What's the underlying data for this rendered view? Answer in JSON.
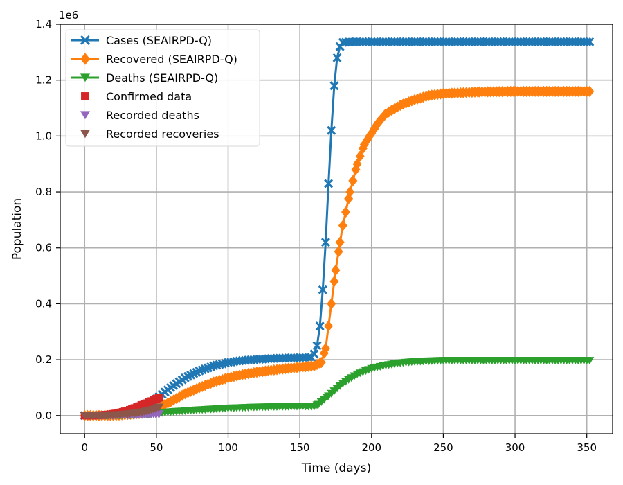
{
  "chart_data": {
    "type": "line",
    "xlabel": "Time (days)",
    "ylabel": "Population",
    "y_scale_label": "1e6",
    "xlim": [
      -17,
      368
    ],
    "ylim": [
      -0.065,
      1.4
    ],
    "x_ticks": [
      0,
      50,
      100,
      150,
      200,
      250,
      300,
      350
    ],
    "x_tick_labels": [
      "0",
      "50",
      "100",
      "150",
      "200",
      "250",
      "300",
      "350"
    ],
    "y_ticks": [
      0.0,
      0.2,
      0.4,
      0.6,
      0.8,
      1.0,
      1.2,
      1.4
    ],
    "y_tick_labels": [
      "0.0",
      "0.2",
      "0.4",
      "0.6",
      "0.8",
      "1.0",
      "1.2",
      "1.4"
    ],
    "grid": true,
    "legend_position": "top-left",
    "series": [
      {
        "name": "Cases (SEAIRPD-Q)",
        "kind": "line",
        "marker": "x",
        "color": "#1f77b4",
        "x": [
          0,
          10,
          20,
          30,
          40,
          50,
          60,
          70,
          80,
          90,
          100,
          110,
          120,
          130,
          140,
          150,
          158,
          160,
          162,
          164,
          166,
          168,
          170,
          172,
          174,
          176,
          178,
          180,
          185,
          190,
          200,
          250,
          300,
          352
        ],
        "y": [
          0.0,
          0.0,
          0.002,
          0.008,
          0.025,
          0.06,
          0.1,
          0.135,
          0.16,
          0.178,
          0.19,
          0.197,
          0.201,
          0.204,
          0.206,
          0.207,
          0.208,
          0.22,
          0.25,
          0.32,
          0.45,
          0.62,
          0.83,
          1.02,
          1.18,
          1.28,
          1.32,
          1.335,
          1.337,
          1.337,
          1.337,
          1.337,
          1.337,
          1.337
        ]
      },
      {
        "name": "Recovered (SEAIRPD-Q)",
        "kind": "line",
        "marker": "D",
        "color": "#ff7f0e",
        "x": [
          0,
          20,
          40,
          50,
          60,
          70,
          80,
          90,
          100,
          110,
          120,
          130,
          140,
          150,
          160,
          165,
          168,
          170,
          172,
          175,
          178,
          180,
          185,
          190,
          195,
          200,
          205,
          210,
          220,
          230,
          240,
          250,
          275,
          300,
          352
        ],
        "y": [
          0.0,
          0.0,
          0.008,
          0.025,
          0.05,
          0.078,
          0.1,
          0.12,
          0.135,
          0.147,
          0.155,
          0.162,
          0.168,
          0.173,
          0.178,
          0.19,
          0.24,
          0.32,
          0.4,
          0.52,
          0.62,
          0.68,
          0.8,
          0.9,
          0.97,
          1.01,
          1.05,
          1.08,
          1.11,
          1.13,
          1.145,
          1.152,
          1.158,
          1.16,
          1.16
        ]
      },
      {
        "name": "Deaths (SEAIRPD-Q)",
        "kind": "line",
        "marker": "v",
        "color": "#2ca02c",
        "x": [
          0,
          20,
          40,
          50,
          60,
          80,
          100,
          120,
          140,
          160,
          163,
          170,
          180,
          190,
          200,
          210,
          220,
          230,
          250,
          300,
          352
        ],
        "y": [
          0.0,
          0.0,
          0.003,
          0.008,
          0.013,
          0.02,
          0.026,
          0.03,
          0.032,
          0.033,
          0.04,
          0.07,
          0.115,
          0.148,
          0.168,
          0.18,
          0.188,
          0.193,
          0.197,
          0.197,
          0.197
        ]
      },
      {
        "name": "Confirmed data",
        "kind": "scatter",
        "marker": "s",
        "color": "#d62728",
        "x": [
          0,
          5,
          10,
          15,
          20,
          25,
          30,
          35,
          40,
          45,
          50,
          52
        ],
        "y": [
          0.0,
          0.0,
          0.001,
          0.003,
          0.006,
          0.011,
          0.018,
          0.027,
          0.038,
          0.048,
          0.06,
          0.065
        ]
      },
      {
        "name": "Recorded deaths",
        "kind": "scatter",
        "marker": "v",
        "color": "#9467bd",
        "x": [
          0,
          5,
          10,
          15,
          20,
          25,
          30,
          35,
          40,
          45,
          50,
          52
        ],
        "y": [
          0.0,
          0.0,
          0.0,
          0.0,
          0.0,
          0.001,
          0.001,
          0.002,
          0.003,
          0.004,
          0.005,
          0.006
        ]
      },
      {
        "name": "Recorded recoveries",
        "kind": "scatter",
        "marker": "v",
        "color": "#8c564b",
        "x": [
          0,
          5,
          10,
          15,
          20,
          25,
          30,
          35,
          40,
          45,
          50,
          52
        ],
        "y": [
          0.0,
          0.0,
          0.0,
          0.001,
          0.002,
          0.003,
          0.005,
          0.008,
          0.012,
          0.018,
          0.025,
          0.03
        ]
      }
    ]
  }
}
